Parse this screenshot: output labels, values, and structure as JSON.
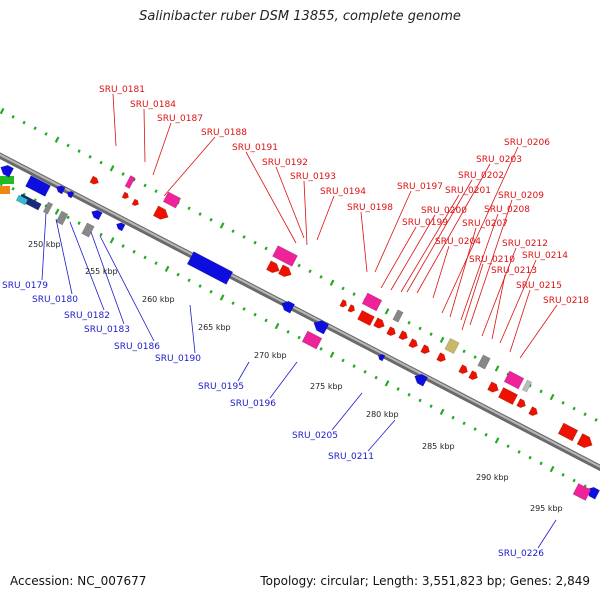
{
  "title": "Salinibacter ruber DSM 13855, complete genome",
  "footer": {
    "accession": "Accession: NC_007677",
    "summary": "Topology: circular; Length: 3,551,823 bp; Genes: 2,849"
  },
  "colors": {
    "forward_label": "#dd1111",
    "reverse_label": "#1a1acc",
    "forward_gene": "#ee1100",
    "reverse_gene": "#0d0de0",
    "rna_gene": "#ee2299",
    "pseudo_gene": "#888888",
    "other_gene": "#c8b86a",
    "backbone": "#888888",
    "ticks": "#22aa22"
  },
  "kbp_ticks": [
    "250 kbp",
    "255 kbp",
    "260 kbp",
    "265 kbp",
    "270 kbp",
    "275 kbp",
    "280 kbp",
    "285 kbp",
    "290 kbp",
    "295 kbp"
  ],
  "forward_labels": [
    "SRU_0181",
    "SRU_0184",
    "SRU_0187",
    "SRU_0188",
    "SRU_0191",
    "SRU_0192",
    "SRU_0193",
    "SRU_0194",
    "SRU_0197",
    "SRU_0198",
    "SRU_0199",
    "SRU_0200",
    "SRU_0201",
    "SRU_0202",
    "SRU_0203",
    "SRU_0204",
    "SRU_0206",
    "SRU_0207",
    "SRU_0208",
    "SRU_0209",
    "SRU_0210",
    "SRU_0212",
    "SRU_0213",
    "SRU_0214",
    "SRU_0215",
    "SRU_0218"
  ],
  "reverse_labels": [
    "SRU_0179",
    "SRU_0180",
    "SRU_0182",
    "SRU_0183",
    "SRU_0186",
    "SRU_0190",
    "SRU_0195",
    "SRU_0196",
    "SRU_0205",
    "SRU_0211",
    "SRU_0226"
  ]
}
